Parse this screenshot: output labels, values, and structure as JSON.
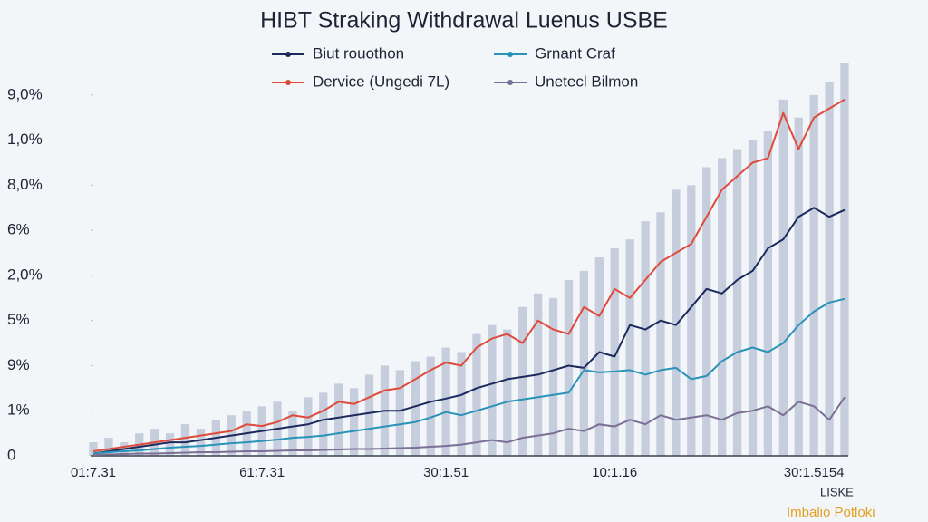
{
  "chart_data": {
    "type": "line",
    "title": "HIBT Straking Withdrawal Luenus USBE",
    "categories": [
      "01:7.31",
      null,
      null,
      null,
      null,
      null,
      null,
      null,
      null,
      null,
      null,
      "61:7.31",
      null,
      null,
      null,
      null,
      null,
      null,
      null,
      null,
      null,
      null,
      null,
      "30:1.51",
      null,
      null,
      null,
      null,
      null,
      null,
      null,
      null,
      null,
      null,
      "10:1.16",
      null,
      null,
      null,
      null,
      null,
      null,
      null,
      null,
      null,
      null,
      null,
      null,
      "30:1.5154",
      null,
      null
    ],
    "ylim": [
      0,
      8.8
    ],
    "yticks": [
      {
        "value": 0,
        "label": "0"
      },
      {
        "value": 1,
        "label": "1%"
      },
      {
        "value": 2,
        "label": "9%"
      },
      {
        "value": 3,
        "label": "5%"
      },
      {
        "value": 4,
        "label": "2,0%"
      },
      {
        "value": 5,
        "label": "6%"
      },
      {
        "value": 6,
        "label": "8,0%"
      },
      {
        "value": 7,
        "label": "1,0%"
      },
      {
        "value": 8,
        "label": "9,0%"
      }
    ],
    "legend": "top",
    "grid": false,
    "bars": {
      "color": "#9aa6c4",
      "values": [
        0.3,
        0.4,
        0.3,
        0.5,
        0.6,
        0.5,
        0.7,
        0.6,
        0.8,
        0.9,
        1.0,
        1.1,
        1.2,
        1.0,
        1.3,
        1.4,
        1.6,
        1.5,
        1.8,
        2.0,
        1.9,
        2.1,
        2.2,
        2.4,
        2.3,
        2.7,
        2.9,
        2.8,
        3.3,
        3.6,
        3.5,
        3.9,
        4.1,
        4.4,
        4.6,
        4.8,
        5.2,
        5.4,
        5.9,
        6.0,
        6.4,
        6.6,
        6.8,
        7.0,
        7.2,
        7.9,
        7.5,
        8.0,
        8.3,
        8.7
      ]
    },
    "series": [
      {
        "name": "Biut rouothon",
        "color": "#1c2a5e",
        "values": [
          0.05,
          0.1,
          0.15,
          0.2,
          0.25,
          0.3,
          0.3,
          0.35,
          0.4,
          0.45,
          0.5,
          0.55,
          0.6,
          0.65,
          0.7,
          0.8,
          0.85,
          0.9,
          0.95,
          1.0,
          1.0,
          1.1,
          1.2,
          1.27,
          1.35,
          1.5,
          1.6,
          1.7,
          1.75,
          1.8,
          1.9,
          2.0,
          1.95,
          2.3,
          2.2,
          2.9,
          2.8,
          3.0,
          2.9,
          3.3,
          3.7,
          3.6,
          3.9,
          4.1,
          4.6,
          4.8,
          5.3,
          5.5,
          5.3,
          5.45
        ]
      },
      {
        "name": "Grnant Craf",
        "color": "#2a93b8",
        "values": [
          0.05,
          0.08,
          0.1,
          0.12,
          0.15,
          0.18,
          0.2,
          0.22,
          0.25,
          0.28,
          0.3,
          0.33,
          0.36,
          0.4,
          0.42,
          0.45,
          0.5,
          0.55,
          0.6,
          0.65,
          0.7,
          0.75,
          0.85,
          0.97,
          0.9,
          1.0,
          1.1,
          1.2,
          1.25,
          1.3,
          1.35,
          1.4,
          1.9,
          1.85,
          1.87,
          1.9,
          1.8,
          1.9,
          1.95,
          1.7,
          1.77,
          2.1,
          2.3,
          2.4,
          2.3,
          2.5,
          2.9,
          3.2,
          3.4,
          3.48
        ]
      },
      {
        "name": "Dervice (Ungedi 7L)",
        "color": "#e04a3a",
        "values": [
          0.1,
          0.15,
          0.2,
          0.25,
          0.3,
          0.35,
          0.4,
          0.45,
          0.5,
          0.55,
          0.7,
          0.66,
          0.75,
          0.9,
          0.85,
          1.0,
          1.2,
          1.15,
          1.3,
          1.45,
          1.5,
          1.7,
          1.9,
          2.07,
          2.0,
          2.4,
          2.6,
          2.7,
          2.5,
          3.0,
          2.8,
          2.7,
          3.3,
          3.1,
          3.7,
          3.5,
          3.9,
          4.3,
          4.5,
          4.7,
          5.3,
          5.9,
          6.2,
          6.5,
          6.6,
          7.6,
          6.8,
          7.5,
          7.7,
          7.9
        ]
      },
      {
        "name": "Unetecl Bilmon",
        "color": "#7a6f94",
        "values": [
          0.02,
          0.03,
          0.04,
          0.05,
          0.05,
          0.06,
          0.07,
          0.08,
          0.08,
          0.09,
          0.1,
          0.1,
          0.11,
          0.12,
          0.12,
          0.13,
          0.14,
          0.15,
          0.15,
          0.16,
          0.17,
          0.18,
          0.2,
          0.22,
          0.25,
          0.3,
          0.35,
          0.3,
          0.4,
          0.45,
          0.5,
          0.6,
          0.55,
          0.7,
          0.65,
          0.8,
          0.7,
          0.9,
          0.8,
          0.85,
          0.9,
          0.8,
          0.95,
          1.0,
          1.1,
          0.9,
          1.2,
          1.1,
          0.8,
          1.3
        ]
      }
    ],
    "corner_labels": [
      "LISKE",
      "Imbalio Potloki"
    ]
  }
}
